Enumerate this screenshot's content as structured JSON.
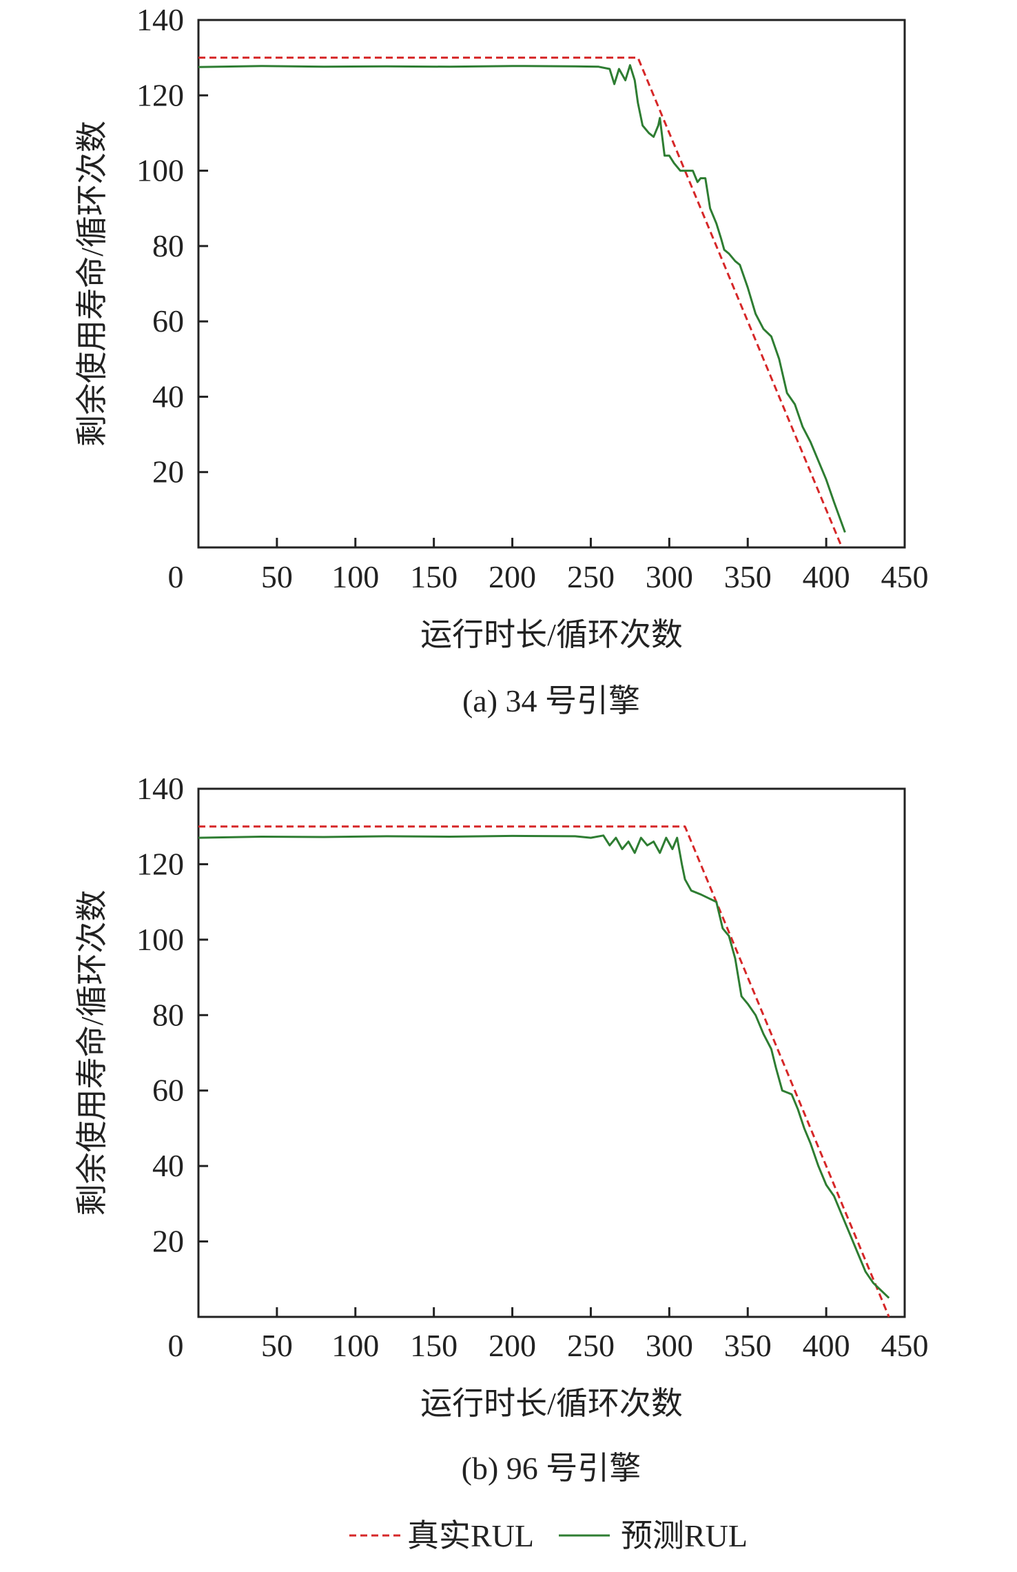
{
  "chart_data": [
    {
      "type": "line",
      "caption": "(a) 34 号引擎",
      "xlabel": "运行时长/循环次数",
      "ylabel": "剩余使用寿命/循环次数",
      "xlim": [
        0,
        450
      ],
      "ylim": [
        0,
        140
      ],
      "xticks": [
        0,
        50,
        100,
        150,
        200,
        250,
        300,
        350,
        400,
        450
      ],
      "yticks": [
        20,
        40,
        60,
        80,
        100,
        120,
        140
      ],
      "grid": false,
      "series": [
        {
          "name": "真实RUL",
          "color": "#d62728",
          "style": "dashed",
          "x": [
            0,
            280,
            410
          ],
          "y": [
            130,
            130,
            0
          ]
        },
        {
          "name": "预测RUL",
          "color": "#2e7d32",
          "style": "solid",
          "x": [
            0,
            40,
            80,
            120,
            160,
            200,
            240,
            255,
            262,
            265,
            268,
            272,
            275,
            278,
            280,
            283,
            287,
            290,
            293,
            294,
            297,
            300,
            303,
            307,
            310,
            315,
            318,
            320,
            323,
            326,
            330,
            333,
            335,
            338,
            342,
            345,
            350,
            355,
            360,
            365,
            370,
            375,
            380,
            385,
            390,
            395,
            400,
            405,
            412
          ],
          "y": [
            127.5,
            127.8,
            127.6,
            127.7,
            127.6,
            127.8,
            127.7,
            127.6,
            127,
            123,
            127,
            124,
            128,
            124,
            118,
            112,
            110,
            109,
            112,
            114,
            104,
            104,
            102,
            100,
            100,
            100,
            97,
            98,
            98,
            90,
            86,
            82,
            79,
            78,
            76,
            75,
            69,
            62,
            58,
            56,
            50,
            41,
            38,
            32,
            28,
            23,
            18,
            12,
            4
          ]
        }
      ]
    },
    {
      "type": "line",
      "caption": "(b) 96 号引擎",
      "xlabel": "运行时长/循环次数",
      "ylabel": "剩余使用寿命/循环次数",
      "xlim": [
        0,
        450
      ],
      "ylim": [
        0,
        140
      ],
      "xticks": [
        0,
        50,
        100,
        150,
        200,
        250,
        300,
        350,
        400,
        450
      ],
      "yticks": [
        20,
        40,
        60,
        80,
        100,
        120,
        140
      ],
      "grid": false,
      "series": [
        {
          "name": "真实RUL",
          "color": "#d62728",
          "style": "dashed",
          "x": [
            0,
            310,
            440
          ],
          "y": [
            130,
            130,
            0
          ]
        },
        {
          "name": "预测RUL",
          "color": "#2e7d32",
          "style": "solid",
          "x": [
            0,
            40,
            80,
            120,
            160,
            200,
            240,
            250,
            258,
            262,
            266,
            270,
            274,
            278,
            282,
            286,
            290,
            294,
            298,
            302,
            305,
            308,
            310,
            314,
            320,
            325,
            330,
            334,
            338,
            342,
            346,
            350,
            355,
            360,
            365,
            368,
            372,
            378,
            382,
            386,
            390,
            395,
            400,
            405,
            410,
            415,
            420,
            425,
            430,
            440
          ],
          "y": [
            127,
            127.3,
            127.2,
            127.4,
            127.3,
            127.5,
            127.4,
            127,
            127.6,
            125,
            127,
            124,
            126,
            123,
            127,
            125,
            126,
            123,
            127,
            124,
            127,
            120,
            116,
            113,
            112,
            111,
            110,
            103,
            101,
            95,
            85,
            83,
            80,
            75,
            71,
            66,
            60,
            59,
            55,
            50,
            46,
            40,
            35,
            32,
            27,
            22,
            17,
            12,
            9,
            5
          ]
        }
      ]
    }
  ],
  "legend": {
    "placement": "bottom",
    "entries": [
      {
        "label": "真实RUL",
        "color": "#d62728",
        "style": "dashed"
      },
      {
        "label": "预测RUL",
        "color": "#2e7d32",
        "style": "solid"
      }
    ]
  }
}
